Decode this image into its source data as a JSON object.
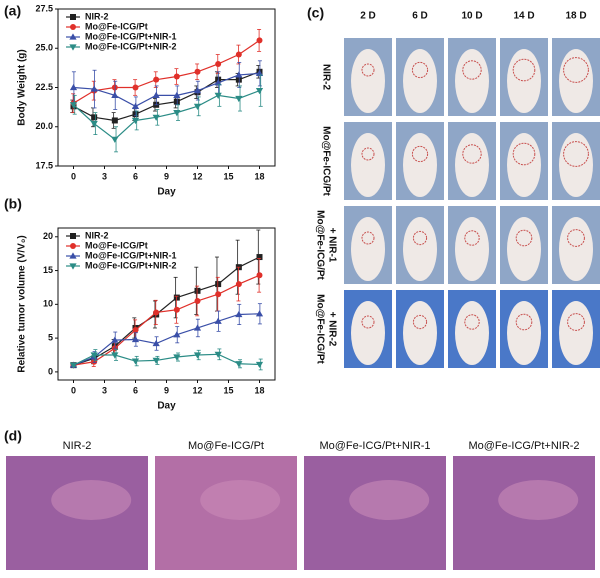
{
  "chart_data": [
    {
      "type": "line",
      "panel": "(a)",
      "y_label": "Body Weight (g)",
      "x_label": "Day",
      "x": [
        0,
        2,
        4,
        6,
        8,
        10,
        12,
        14,
        16,
        18
      ],
      "xlim": [
        -1.5,
        19.5
      ],
      "xticks": [
        0,
        3,
        6,
        9,
        12,
        15,
        18
      ],
      "ylim": [
        17.5,
        27.5
      ],
      "yticks": [
        17.5,
        {
          "value": 20,
          "label": "20.0"
        },
        22.5,
        {
          "value": 25,
          "label": "25.0"
        },
        27.5
      ],
      "legend": "upper left",
      "series": [
        {
          "name": "NIR-2",
          "color": "#222222",
          "marker": "square",
          "values": [
            21.3,
            20.6,
            20.4,
            20.8,
            21.4,
            21.6,
            22.2,
            23.0,
            23.0,
            23.5
          ],
          "errors": [
            0.4,
            0.6,
            0.5,
            0.4,
            0.4,
            0.4,
            0.4,
            0.5,
            0.4,
            0.4
          ]
        },
        {
          "name": "Mo@Fe-ICG/Pt",
          "color": "#e0302a",
          "marker": "circle",
          "values": [
            21.5,
            22.3,
            22.5,
            22.5,
            23.0,
            23.2,
            23.5,
            24.0,
            24.6,
            25.5
          ],
          "errors": [
            0.6,
            0.6,
            0.5,
            0.5,
            0.5,
            0.5,
            0.5,
            0.6,
            0.6,
            0.7
          ]
        },
        {
          "name": "Mo@Fe-ICG/Pt+NIR-1",
          "color": "#3a4fa8",
          "marker": "triangle-up",
          "values": [
            22.5,
            22.4,
            22.0,
            21.3,
            22.0,
            22.0,
            22.3,
            22.8,
            23.3,
            23.4
          ],
          "errors": [
            1.0,
            1.2,
            0.9,
            0.6,
            0.6,
            0.6,
            0.6,
            0.7,
            0.8,
            0.8
          ]
        },
        {
          "name": "Mo@Fe-ICG/Pt+NIR-2",
          "color": "#2b8c86",
          "marker": "triangle-down",
          "values": [
            21.4,
            20.2,
            19.2,
            20.4,
            20.6,
            20.9,
            21.3,
            22.0,
            21.8,
            22.3
          ],
          "errors": [
            0.6,
            0.7,
            0.8,
            0.6,
            0.5,
            0.5,
            0.6,
            0.7,
            0.8,
            1.0
          ]
        }
      ]
    },
    {
      "type": "line",
      "panel": "(b)",
      "y_label": "Relative tumor volume (V/V₀)",
      "x_label": "Day",
      "x": [
        0,
        2,
        4,
        6,
        8,
        10,
        12,
        14,
        16,
        18
      ],
      "xlim": [
        -1.5,
        19.5
      ],
      "xticks": [
        0,
        3,
        6,
        9,
        12,
        15,
        18
      ],
      "ylim": [
        -1.2,
        21.3
      ],
      "yticks": [
        0,
        5,
        10,
        15,
        20
      ],
      "legend": "upper left",
      "series": [
        {
          "name": "NIR-2",
          "color": "#222222",
          "marker": "square",
          "values": [
            1,
            2.0,
            3.8,
            6.5,
            8.5,
            11,
            12,
            13,
            15.5,
            17
          ],
          "errors": [
            0.2,
            0.8,
            1.0,
            1.5,
            2.0,
            3.0,
            3.5,
            4.0,
            4.0,
            4.0
          ]
        },
        {
          "name": "Mo@Fe-ICG/Pt",
          "color": "#e0302a",
          "marker": "circle",
          "values": [
            1,
            1.5,
            3.5,
            6.2,
            8.8,
            9.2,
            10.5,
            11.5,
            13,
            14.3
          ],
          "errors": [
            0.2,
            0.7,
            1.0,
            1.5,
            1.8,
            2.0,
            2.2,
            2.5,
            2.5,
            2.5
          ]
        },
        {
          "name": "Mo@Fe-ICG/Pt+NIR-1",
          "color": "#3a4fa8",
          "marker": "triangle-up",
          "values": [
            1,
            2.2,
            4.7,
            4.8,
            4.2,
            5.5,
            6.5,
            7.5,
            8.5,
            8.6
          ],
          "errors": [
            0.2,
            0.8,
            1.2,
            1.0,
            1.0,
            1.2,
            1.3,
            1.5,
            1.5,
            1.5
          ]
        },
        {
          "name": "Mo@Fe-ICG/Pt+NIR-2",
          "color": "#2b8c86",
          "marker": "triangle-down",
          "values": [
            1,
            2.5,
            2.5,
            1.6,
            1.7,
            2.2,
            2.5,
            2.6,
            1.2,
            1.1
          ],
          "errors": [
            0.2,
            0.8,
            0.8,
            0.7,
            0.6,
            0.6,
            0.7,
            0.8,
            0.6,
            0.8
          ]
        }
      ]
    }
  ],
  "photos": {
    "panel": "(c)",
    "days": [
      "2 D",
      "6 D",
      "10 D",
      "14 D",
      "18 D"
    ],
    "rows": [
      [
        "NIR-2"
      ],
      [
        "Mo@Fe-ICG/Pt"
      ],
      [
        "Mo@Fe-ICG/Pt",
        "+ NIR-1"
      ],
      [
        "Mo@Fe-ICG/Pt",
        "+ NIR-2"
      ]
    ]
  },
  "histology": {
    "panel": "(d)",
    "titles": [
      "NIR-2",
      "Mo@Fe-ICG/Pt",
      "Mo@Fe-ICG/Pt+NIR-1",
      "Mo@Fe-ICG/Pt+NIR-2"
    ]
  }
}
